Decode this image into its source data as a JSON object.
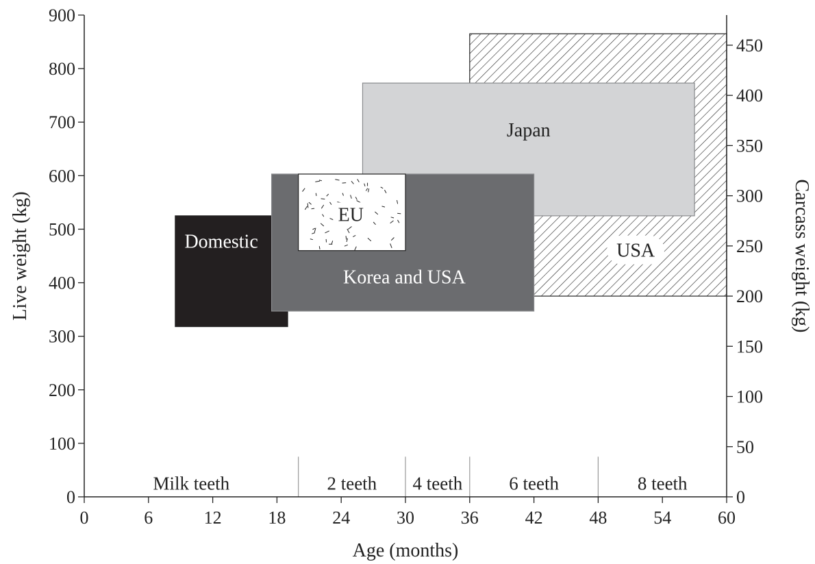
{
  "chart_data": {
    "type": "area",
    "xlabel": "Age (months)",
    "ylabel": "Live weight (kg)",
    "y2label": "Carcass weight (kg)",
    "xlim": [
      0,
      60
    ],
    "ylim": [
      0,
      900
    ],
    "y2lim": [
      0,
      480
    ],
    "x_ticks": [
      "0",
      "6",
      "12",
      "18",
      "24",
      "30",
      "36",
      "42",
      "48",
      "54",
      "60"
    ],
    "y_ticks": [
      "0",
      "100",
      "200",
      "300",
      "400",
      "500",
      "600",
      "700",
      "800",
      "900"
    ],
    "y2_ticks": [
      "0",
      "50",
      "100",
      "150",
      "200",
      "250",
      "300",
      "350",
      "400",
      "450"
    ],
    "regions": [
      {
        "name": "USA",
        "label": "USA",
        "x": [
          36,
          60
        ],
        "y": [
          375,
          865
        ],
        "fill": "hatch",
        "label_at": [
          51.5,
          460
        ]
      },
      {
        "name": "Japan",
        "label": "Japan",
        "x": [
          26,
          57
        ],
        "y": [
          525,
          773
        ],
        "fill": "#d3d4d6",
        "label_at": [
          41.5,
          685
        ]
      },
      {
        "name": "Domestic",
        "label": "Domestic",
        "x": [
          8.5,
          19
        ],
        "y": [
          318,
          525
        ],
        "fill": "#231f20",
        "label_at": [
          12.8,
          477
        ]
      },
      {
        "name": "Korea and USA",
        "label": "Korea and USA",
        "x": [
          17.5,
          42
        ],
        "y": [
          347,
          603
        ],
        "fill": "#6b6c6f",
        "label_at": [
          29.9,
          410
        ]
      },
      {
        "name": "EU",
        "label": "EU",
        "x": [
          20,
          30
        ],
        "y": [
          460,
          603
        ],
        "fill": "speckle",
        "label_at": [
          24.9,
          527
        ]
      }
    ],
    "teeth_stages": [
      {
        "label": "Milk teeth",
        "x": [
          0,
          20
        ]
      },
      {
        "label": "2 teeth",
        "x": [
          20,
          30
        ]
      },
      {
        "label": "4 teeth",
        "x": [
          30,
          36
        ]
      },
      {
        "label": "6 teeth",
        "x": [
          36,
          48
        ]
      },
      {
        "label": "8 teeth",
        "x": [
          48,
          60
        ]
      }
    ],
    "teeth_divider_top": 75,
    "grid": false,
    "legend": "none",
    "colors": {
      "axis": "#222222",
      "domestic": "#231f20",
      "korea_usa": "#6b6c6f",
      "japan": "#d3d4d6",
      "usa_hatch": "#222222",
      "eu": "#ffffff"
    }
  }
}
